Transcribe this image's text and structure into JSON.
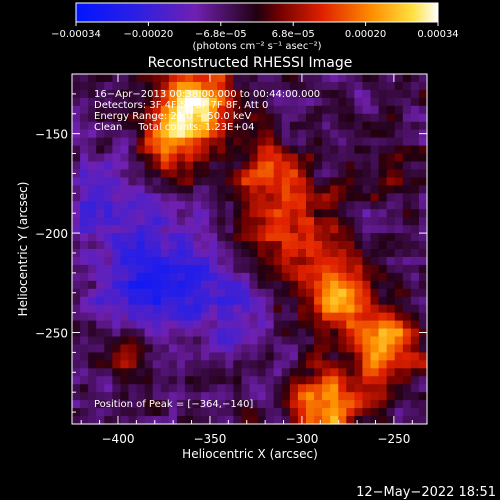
{
  "chart_data": {
    "type": "heatmap",
    "title": "Reconstructed RHESSI Image",
    "xlabel": "Heliocentric X (arcsec)",
    "ylabel": "Heliocentric Y (arcsec)",
    "xlim": [
      -425,
      -232
    ],
    "ylim": [
      -296,
      -120
    ],
    "x_ticks": [
      -400,
      -350,
      -300,
      -250
    ],
    "x_tick_labels": [
      "−400",
      "−350",
      "−300",
      "−250"
    ],
    "y_ticks": [
      -150,
      -200,
      -250
    ],
    "y_tick_labels": [
      "−150",
      "−200",
      "−250"
    ],
    "colorbar": {
      "range": [
        -0.00034,
        0.00034
      ],
      "tick_labels": [
        "−0.00034",
        "−0.00020",
        "−6.8e−05",
        "6.8e−05",
        "0.00020",
        "0.00034"
      ],
      "unit_label": "(photons cm⁻² s⁻¹ asec⁻²)"
    },
    "annotations": [
      "16−Apr−2013 00:38:00.000 to 00:44:00.000",
      "Detectors: 3F 4F 5F 6F 7F 8F, Att 0",
      "Energy Range: 25.0 − 50.0 keV",
      "Clean     Total counts: 1.23E+04"
    ],
    "peak_label": "Position of Peak = [−364,−140]",
    "peak_position": [
      -364,
      -140
    ]
  },
  "timestamp": "12−May−2022 18:51"
}
